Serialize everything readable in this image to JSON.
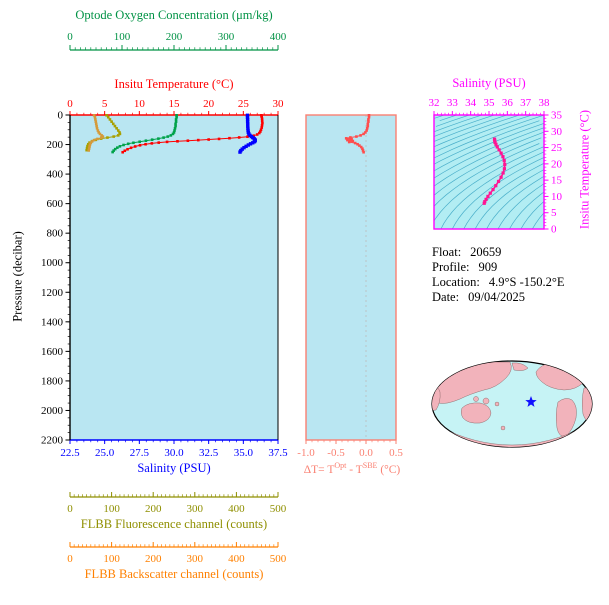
{
  "info": {
    "lines": [
      {
        "label": "Float:",
        "value": "20659"
      },
      {
        "label": "Profile:",
        "value": "909"
      },
      {
        "label": "Location:",
        "value": "4.9°S -150.2°E"
      },
      {
        "label": "Date:",
        "value": "09/04/2025"
      }
    ]
  },
  "map": {
    "star_color": "#1010ff",
    "ocean_color": "#c6f3f5",
    "land_color": "#f2b3bb"
  },
  "chart_data": [
    {
      "type": "scatter",
      "panel": "main-profile",
      "plot_bg": "#b9e6f2",
      "y_axis": {
        "label": "Pressure (decibar)",
        "color": "#000000",
        "range": [
          0,
          2200
        ],
        "ticks": [
          "0",
          "200",
          "400",
          "600",
          "800",
          "1000",
          "1200",
          "1400",
          "1600",
          "1800",
          "2000",
          "2200"
        ]
      },
      "x_axes": [
        {
          "id": "oxygen",
          "label": "Optode Oxygen Concentration (μm/kg)",
          "color": "#009245",
          "range": [
            0,
            400
          ],
          "ticks": [
            "0",
            "100",
            "200",
            "300",
            "400"
          ]
        },
        {
          "id": "temperature",
          "label": "Insitu Temperature (°C)",
          "color": "#ff0000",
          "range": [
            0,
            30
          ],
          "ticks": [
            "0",
            "5",
            "10",
            "15",
            "20",
            "25",
            "30"
          ]
        },
        {
          "id": "salinity",
          "label": "Salinity (PSU)",
          "color": "#0000ff",
          "range": [
            22.5,
            37.5
          ],
          "ticks": [
            "22.5",
            "25.0",
            "27.5",
            "30.0",
            "32.5",
            "35.0",
            "37.5"
          ]
        },
        {
          "id": "fluorescence",
          "label": "FLBB Fluorescence channel (counts)",
          "color": "#8f8f00",
          "range": [
            0,
            500
          ],
          "ticks": [
            "0",
            "100",
            "200",
            "300",
            "400",
            "500"
          ]
        },
        {
          "id": "backscatter",
          "label": "FLBB Backscatter channel (counts)",
          "color": "#ff8000",
          "range": [
            0,
            500
          ],
          "ticks": [
            "0",
            "100",
            "200",
            "300",
            "400",
            "500"
          ]
        }
      ],
      "series": [
        {
          "name": "temperature",
          "x_axis": "temperature",
          "color": "#ff0000",
          "points": [
            [
              27.6,
              2
            ],
            [
              27.65,
              12
            ],
            [
              27.7,
              25
            ],
            [
              27.72,
              40
            ],
            [
              27.75,
              55
            ],
            [
              27.7,
              70
            ],
            [
              27.65,
              85
            ],
            [
              27.55,
              100
            ],
            [
              27.45,
              112
            ],
            [
              27.3,
              122
            ],
            [
              27.0,
              132
            ],
            [
              26.5,
              140
            ],
            [
              25.6,
              147
            ],
            [
              24.4,
              152
            ],
            [
              23.0,
              157
            ],
            [
              21.5,
              162
            ],
            [
              20.0,
              166
            ],
            [
              18.5,
              170
            ],
            [
              17.0,
              174
            ],
            [
              15.5,
              178
            ],
            [
              14.0,
              182
            ],
            [
              12.8,
              187
            ],
            [
              11.8,
              192
            ],
            [
              10.9,
              198
            ],
            [
              10.1,
              205
            ],
            [
              9.4,
              213
            ],
            [
              8.8,
              222
            ],
            [
              8.3,
              232
            ],
            [
              7.9,
              242
            ],
            [
              7.6,
              252
            ]
          ]
        },
        {
          "name": "salinity",
          "x_axis": "salinity",
          "color": "#0000ff",
          "points": [
            [
              35.3,
              2
            ],
            [
              35.3,
              15
            ],
            [
              35.31,
              30
            ],
            [
              35.31,
              45
            ],
            [
              35.32,
              60
            ],
            [
              35.32,
              75
            ],
            [
              35.33,
              90
            ],
            [
              35.34,
              105
            ],
            [
              35.36,
              118
            ],
            [
              35.4,
              128
            ],
            [
              35.48,
              138
            ],
            [
              35.58,
              146
            ],
            [
              35.68,
              153
            ],
            [
              35.78,
              160
            ],
            [
              35.84,
              167
            ],
            [
              35.86,
              174
            ],
            [
              35.8,
              181
            ],
            [
              35.68,
              188
            ],
            [
              35.52,
              195
            ],
            [
              35.36,
              203
            ],
            [
              35.2,
              212
            ],
            [
              35.05,
              221
            ],
            [
              34.92,
              231
            ],
            [
              34.82,
              241
            ],
            [
              34.76,
              251
            ]
          ]
        },
        {
          "name": "oxygen",
          "x_axis": "oxygen",
          "color": "#00a24a",
          "points": [
            [
              205,
              2
            ],
            [
              205,
              15
            ],
            [
              204,
              30
            ],
            [
              204,
              45
            ],
            [
              203,
              60
            ],
            [
              203,
              75
            ],
            [
              202,
              90
            ],
            [
              201,
              105
            ],
            [
              200,
              118
            ],
            [
              198,
              128
            ],
            [
              194,
              138
            ],
            [
              188,
              146
            ],
            [
              180,
              153
            ],
            [
              170,
              160
            ],
            [
              158,
              167
            ],
            [
              146,
              174
            ],
            [
              134,
              181
            ],
            [
              122,
              188
            ],
            [
              112,
              195
            ],
            [
              103,
              203
            ],
            [
              96,
              212
            ],
            [
              91,
              221
            ],
            [
              87,
              231
            ],
            [
              84,
              241
            ],
            [
              82,
              251
            ]
          ]
        },
        {
          "name": "fluorescence",
          "x_axis": "fluorescence",
          "color": "#a8a000",
          "points": [
            [
              88,
              2
            ],
            [
              92,
              15
            ],
            [
              96,
              30
            ],
            [
              100,
              45
            ],
            [
              104,
              60
            ],
            [
              108,
              75
            ],
            [
              112,
              90
            ],
            [
              116,
              105
            ],
            [
              119,
              118
            ],
            [
              120,
              128
            ],
            [
              116,
              138
            ],
            [
              105,
              146
            ],
            [
              90,
              153
            ],
            [
              75,
              160
            ],
            [
              62,
              168
            ],
            [
              53,
              177
            ],
            [
              47,
              187
            ],
            [
              44,
              198
            ],
            [
              42,
              210
            ],
            [
              41,
              224
            ],
            [
              40,
              238
            ]
          ]
        },
        {
          "name": "backscatter",
          "x_axis": "backscatter",
          "color": "#d49a3a",
          "points": [
            [
              58,
              2
            ],
            [
              60,
              15
            ],
            [
              61,
              30
            ],
            [
              62,
              45
            ],
            [
              63,
              60
            ],
            [
              64,
              75
            ],
            [
              65,
              90
            ],
            [
              67,
              105
            ],
            [
              69,
              118
            ],
            [
              72,
              128
            ],
            [
              76,
              138
            ],
            [
              79,
              146
            ],
            [
              75,
              154
            ],
            [
              66,
              162
            ],
            [
              58,
              170
            ],
            [
              53,
              179
            ],
            [
              50,
              189
            ],
            [
              48,
              200
            ],
            [
              47,
              213
            ],
            [
              46,
              227
            ],
            [
              45,
              240
            ]
          ]
        }
      ]
    },
    {
      "type": "scatter",
      "panel": "delta-temperature",
      "plot_bg": "#b9e6f2",
      "border_color": "#fa8072",
      "x_axis": {
        "color": "#fa8072",
        "range": [
          -1.0,
          0.5
        ],
        "ticks": [
          "-1.0",
          "-0.5",
          "0.0",
          "0.5"
        ],
        "label_parts": {
          "prefix": "ΔT= T",
          "sup1": "Opt",
          "mid": " - T",
          "sup2": "SBE",
          "suffix": " (°C)"
        }
      },
      "y_axis": {
        "range": [
          0,
          2200
        ]
      },
      "series": [
        {
          "name": "delta-t",
          "color": "#ff4d4d",
          "points": [
            [
              0.05,
              2
            ],
            [
              0.05,
              15
            ],
            [
              0.04,
              30
            ],
            [
              0.04,
              45
            ],
            [
              0.03,
              60
            ],
            [
              0.03,
              75
            ],
            [
              0.02,
              90
            ],
            [
              0.01,
              105
            ],
            [
              -0.01,
              118
            ],
            [
              -0.04,
              128
            ],
            [
              -0.09,
              138
            ],
            [
              -0.16,
              146
            ],
            [
              -0.26,
              152
            ],
            [
              -0.33,
              158
            ],
            [
              -0.24,
              164
            ],
            [
              -0.31,
              170
            ],
            [
              -0.22,
              176
            ],
            [
              -0.28,
              183
            ],
            [
              -0.18,
              190
            ],
            [
              -0.14,
              198
            ],
            [
              -0.11,
              207
            ],
            [
              -0.08,
              217
            ],
            [
              -0.06,
              228
            ],
            [
              -0.05,
              240
            ],
            [
              -0.04,
              252
            ]
          ]
        }
      ]
    },
    {
      "type": "scatter",
      "panel": "ts-diagram",
      "plot_bg": "#b2edf3",
      "x_axis": {
        "label": "Salinity (PSU)",
        "color": "#ff00ff",
        "range": [
          32,
          38
        ],
        "ticks": [
          "32",
          "33",
          "34",
          "35",
          "36",
          "37",
          "38"
        ]
      },
      "y_axis": {
        "label": "Insitu Temperature (°C)",
        "color": "#ff00ff",
        "range": [
          0,
          35
        ],
        "ticks": [
          "0",
          "5",
          "10",
          "15",
          "20",
          "25",
          "30",
          "35"
        ]
      },
      "contours": {
        "color": "#2f9fbf",
        "sigma_min": 18,
        "sigma_max": 30.5,
        "step": 0.5
      },
      "series": [
        {
          "name": "t-s",
          "color": "#ff1493",
          "points": [
            [
              35.3,
              27.6
            ],
            [
              35.31,
              27.2
            ],
            [
              35.33,
              26.6
            ],
            [
              35.38,
              26.0
            ],
            [
              35.45,
              25.2
            ],
            [
              35.55,
              24.3
            ],
            [
              35.66,
              23.3
            ],
            [
              35.76,
              22.2
            ],
            [
              35.83,
              21.0
            ],
            [
              35.86,
              19.8
            ],
            [
              35.84,
              18.5
            ],
            [
              35.77,
              17.2
            ],
            [
              35.66,
              15.9
            ],
            [
              35.52,
              14.6
            ],
            [
              35.37,
              13.3
            ],
            [
              35.22,
              12.1
            ],
            [
              35.07,
              11.0
            ],
            [
              34.94,
              10.0
            ],
            [
              34.84,
              9.1
            ],
            [
              34.77,
              8.4
            ],
            [
              34.74,
              7.9
            ]
          ]
        }
      ]
    }
  ]
}
